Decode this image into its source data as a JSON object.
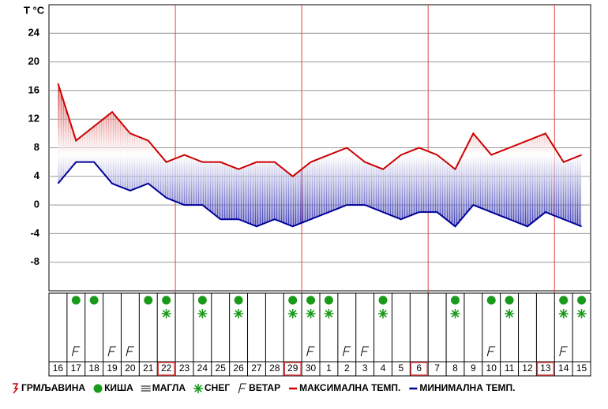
{
  "chart_data": {
    "type": "line",
    "y_label": "T °C",
    "categories": [
      "16",
      "17",
      "18",
      "19",
      "20",
      "21",
      "22",
      "23",
      "24",
      "25",
      "26",
      "27",
      "28",
      "29",
      "30",
      "1",
      "2",
      "3",
      "4",
      "5",
      "6",
      "7",
      "8",
      "9",
      "10",
      "11",
      "12",
      "13",
      "14",
      "15"
    ],
    "series": [
      {
        "name": "МАКСИМАЛНА ТЕМП.",
        "color": "#cc0000",
        "values": [
          17,
          9,
          11,
          13,
          10,
          9,
          6,
          7,
          6,
          6,
          5,
          6,
          6,
          4,
          6,
          7,
          8,
          6,
          5,
          7,
          8,
          7,
          5,
          10,
          7,
          8,
          9,
          10,
          6,
          7
        ]
      },
      {
        "name": "МИНИМАЛНА ТЕМП.",
        "color": "#000099",
        "values": [
          3,
          6,
          6,
          3,
          2,
          3,
          1,
          0,
          0,
          -2,
          -2,
          -3,
          -2,
          -3,
          -2,
          -1,
          0,
          0,
          -1,
          -2,
          -1,
          -1,
          -3,
          0,
          -1,
          -2,
          -3,
          -1,
          -2,
          -3
        ]
      }
    ],
    "ylim": [
      -12,
      28
    ],
    "yticks": [
      -8,
      -4,
      0,
      4,
      8,
      12,
      16,
      20,
      24
    ],
    "grid": true,
    "highlighted_indices": [
      6,
      13,
      20,
      27
    ],
    "weather": {
      "thunder": {
        "name": "ГРМЉАВИНА",
        "values": [
          0,
          0,
          0,
          0,
          0,
          0,
          0,
          0,
          0,
          0,
          0,
          0,
          0,
          0,
          0,
          0,
          0,
          0,
          0,
          0,
          0,
          0,
          0,
          0,
          0,
          0,
          0,
          0,
          0,
          0
        ]
      },
      "rain": {
        "name": "КИША",
        "values": [
          0,
          1,
          1,
          0,
          0,
          1,
          1,
          0,
          1,
          0,
          1,
          0,
          0,
          1,
          1,
          1,
          0,
          0,
          1,
          0,
          0,
          0,
          1,
          0,
          1,
          1,
          0,
          0,
          1,
          1
        ]
      },
      "fog": {
        "name": "МАГЛА",
        "values": [
          0,
          0,
          0,
          0,
          0,
          0,
          0,
          0,
          0,
          0,
          0,
          0,
          0,
          0,
          0,
          0,
          0,
          0,
          0,
          0,
          0,
          0,
          0,
          0,
          0,
          0,
          0,
          0,
          0,
          0
        ]
      },
      "snow": {
        "name": "СНЕГ",
        "values": [
          0,
          0,
          0,
          0,
          0,
          0,
          1,
          0,
          1,
          0,
          1,
          0,
          0,
          1,
          1,
          1,
          0,
          0,
          1,
          0,
          0,
          0,
          1,
          0,
          0,
          1,
          0,
          0,
          1,
          1
        ]
      },
      "wind": {
        "name": "ВЕТАР",
        "values": [
          0,
          1,
          0,
          1,
          1,
          0,
          0,
          0,
          0,
          0,
          0,
          0,
          0,
          0,
          1,
          0,
          1,
          1,
          0,
          0,
          0,
          0,
          0,
          0,
          1,
          0,
          0,
          0,
          1,
          0
        ]
      }
    }
  }
}
